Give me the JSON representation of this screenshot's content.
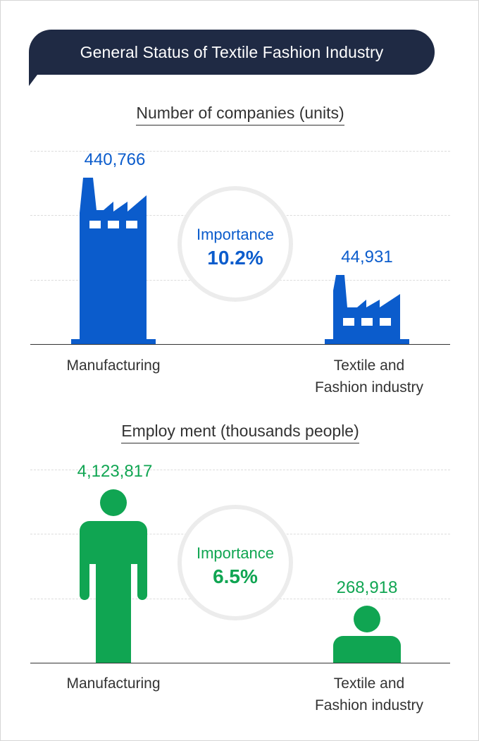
{
  "title": "General Status of Textile Fashion Industry",
  "colors": {
    "companies": "#0b5ccc",
    "employment": "#10a552",
    "banner": "#1f2a44"
  },
  "chart_data": [
    {
      "type": "bar",
      "title": "Number of companies (units)",
      "categories": [
        "Manufacturing",
        "Textile and Fashion industry"
      ],
      "values": [
        440766,
        44931
      ],
      "value_labels": [
        "440,766",
        "44,931"
      ],
      "category_label_lines": [
        [
          "Manufacturing"
        ],
        [
          "Textile and",
          "Fashion industry"
        ]
      ],
      "importance_label": "Importance",
      "importance_value": "10.2%",
      "icon": "factory-icon"
    },
    {
      "type": "bar",
      "title": "Employ ment (thousands people)",
      "categories": [
        "Manufacturing",
        "Textile and Fashion industry"
      ],
      "values": [
        4123817,
        268918
      ],
      "value_labels": [
        "4,123,817",
        "268,918"
      ],
      "category_label_lines": [
        [
          "Manufacturing"
        ],
        [
          "Textile and",
          "Fashion industry"
        ]
      ],
      "importance_label": "Importance",
      "importance_value": "6.5%",
      "icon": "person-icon"
    }
  ]
}
